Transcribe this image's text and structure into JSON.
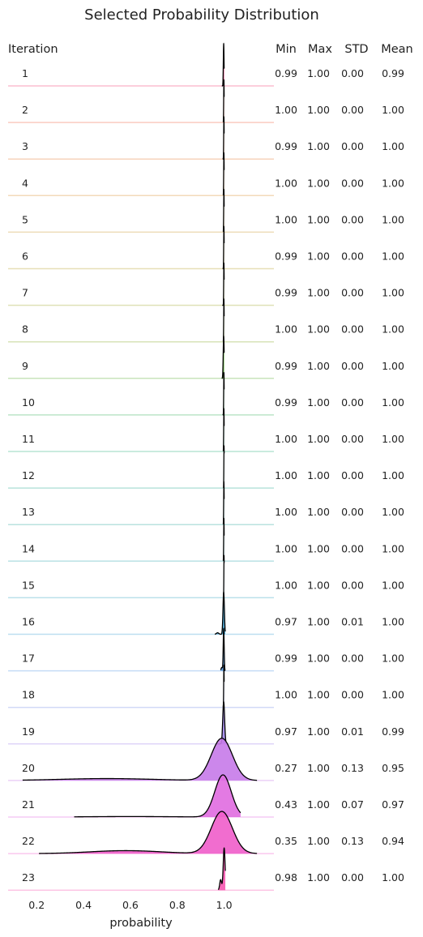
{
  "chart_data": {
    "type": "ridgeline",
    "title": "Selected Probability Distribution",
    "xlabel": "probability",
    "xlim": [
      0.13,
      1.15
    ],
    "x_ticks": [
      "0.2",
      "0.4",
      "0.6",
      "0.8",
      "1.0"
    ],
    "x_tick_values": [
      0.2,
      0.4,
      0.6,
      0.8,
      1.0
    ],
    "row_header": "Iteration",
    "stat_headers": [
      "Min",
      "Max",
      "STD",
      "Mean"
    ],
    "colors": [
      "#f0457c",
      "#f06a4a",
      "#e9813e",
      "#dc9438",
      "#cc9a34",
      "#b8a232",
      "#a3a932",
      "#8bae33",
      "#62b23b",
      "#3fb162",
      "#33b180",
      "#35af95",
      "#37aca4",
      "#39aab3",
      "#3ca8c2",
      "#43a3d3",
      "#5a9ce1",
      "#7e93e9",
      "#a288ec",
      "#c77ae9",
      "#e06be0",
      "#f05dca",
      "#f756b1"
    ],
    "series": [
      {
        "name": "1",
        "min": "0.99",
        "max": "1.00",
        "std": "0.00",
        "mean": "0.99",
        "mu": 0.998,
        "sigma": 0.0015,
        "xmin": 0.99,
        "xmax": 1.0
      },
      {
        "name": "2",
        "min": "1.00",
        "max": "1.00",
        "std": "0.00",
        "mean": "1.00",
        "mu": 0.999,
        "sigma": 0.001,
        "xmin": 0.996,
        "xmax": 1.0
      },
      {
        "name": "3",
        "min": "0.99",
        "max": "1.00",
        "std": "0.00",
        "mean": "1.00",
        "mu": 0.999,
        "sigma": 0.001,
        "xmin": 0.994,
        "xmax": 1.0
      },
      {
        "name": "4",
        "min": "1.00",
        "max": "1.00",
        "std": "0.00",
        "mean": "1.00",
        "mu": 0.999,
        "sigma": 0.001,
        "xmin": 0.996,
        "xmax": 1.0
      },
      {
        "name": "5",
        "min": "1.00",
        "max": "1.00",
        "std": "0.00",
        "mean": "1.00",
        "mu": 0.999,
        "sigma": 0.001,
        "xmin": 0.996,
        "xmax": 1.0
      },
      {
        "name": "6",
        "min": "0.99",
        "max": "1.00",
        "std": "0.00",
        "mean": "1.00",
        "mu": 0.999,
        "sigma": 0.001,
        "xmin": 0.994,
        "xmax": 1.0
      },
      {
        "name": "7",
        "min": "0.99",
        "max": "1.00",
        "std": "0.00",
        "mean": "1.00",
        "mu": 0.999,
        "sigma": 0.001,
        "xmin": 0.992,
        "xmax": 1.0
      },
      {
        "name": "8",
        "min": "1.00",
        "max": "1.00",
        "std": "0.00",
        "mean": "1.00",
        "mu": 0.999,
        "sigma": 0.001,
        "xmin": 0.996,
        "xmax": 1.0
      },
      {
        "name": "9",
        "min": "0.99",
        "max": "1.00",
        "std": "0.00",
        "mean": "1.00",
        "mu": 0.998,
        "sigma": 0.002,
        "xmin": 0.99,
        "xmax": 1.0
      },
      {
        "name": "10",
        "min": "0.99",
        "max": "1.00",
        "std": "0.00",
        "mean": "1.00",
        "mu": 0.999,
        "sigma": 0.001,
        "xmin": 0.994,
        "xmax": 1.0
      },
      {
        "name": "11",
        "min": "1.00",
        "max": "1.00",
        "std": "0.00",
        "mean": "1.00",
        "mu": 0.999,
        "sigma": 0.001,
        "xmin": 0.996,
        "xmax": 1.0
      },
      {
        "name": "12",
        "min": "1.00",
        "max": "1.00",
        "std": "0.00",
        "mean": "1.00",
        "mu": 0.9995,
        "sigma": 0.0008,
        "xmin": 0.997,
        "xmax": 1.0
      },
      {
        "name": "13",
        "min": "1.00",
        "max": "1.00",
        "std": "0.00",
        "mean": "1.00",
        "mu": 0.999,
        "sigma": 0.001,
        "xmin": 0.996,
        "xmax": 1.0
      },
      {
        "name": "14",
        "min": "1.00",
        "max": "1.00",
        "std": "0.00",
        "mean": "1.00",
        "mu": 0.999,
        "sigma": 0.001,
        "xmin": 0.996,
        "xmax": 1.0
      },
      {
        "name": "15",
        "min": "1.00",
        "max": "1.00",
        "std": "0.00",
        "mean": "1.00",
        "mu": 0.9995,
        "sigma": 0.0008,
        "xmin": 0.997,
        "xmax": 1.0
      },
      {
        "name": "16",
        "min": "0.97",
        "max": "1.00",
        "std": "0.01",
        "mean": "1.00",
        "mu": 0.998,
        "sigma": 0.003,
        "xmin": 0.96,
        "xmax": 1.005,
        "bump_mu": 0.972,
        "bump_sigma": 0.005,
        "bump_w": 0.035
      },
      {
        "name": "17",
        "min": "0.99",
        "max": "1.00",
        "std": "0.00",
        "mean": "1.00",
        "mu": 0.998,
        "sigma": 0.002,
        "xmin": 0.985,
        "xmax": 1.005,
        "bump_mu": 0.99,
        "bump_sigma": 0.003,
        "bump_w": 0.08
      },
      {
        "name": "18",
        "min": "1.00",
        "max": "1.00",
        "std": "0.00",
        "mean": "1.00",
        "mu": 0.999,
        "sigma": 0.001,
        "xmin": 0.996,
        "xmax": 1.0
      },
      {
        "name": "19",
        "min": "0.97",
        "max": "1.00",
        "std": "0.01",
        "mean": "0.99",
        "mu": 0.998,
        "sigma": 0.004,
        "xmin": 0.97,
        "xmax": 1.01
      },
      {
        "name": "20",
        "min": "0.27",
        "max": "1.00",
        "std": "0.13",
        "mean": "0.95",
        "mu": 0.99,
        "sigma": 0.045,
        "xmin": 0.14,
        "xmax": 1.14,
        "tail": 0.045,
        "tail_mu": 0.5,
        "tail_sigma": 0.2
      },
      {
        "name": "21",
        "min": "0.43",
        "max": "1.00",
        "std": "0.07",
        "mean": "0.97",
        "mu": 0.995,
        "sigma": 0.035,
        "xmin": 0.36,
        "xmax": 1.07,
        "tail": 0.012,
        "tail_mu": 0.6,
        "tail_sigma": 0.18
      },
      {
        "name": "22",
        "min": "0.35",
        "max": "1.00",
        "std": "0.13",
        "mean": "0.94",
        "mu": 0.99,
        "sigma": 0.045,
        "xmin": 0.21,
        "xmax": 1.14,
        "tail": 0.07,
        "tail_mu": 0.58,
        "tail_sigma": 0.15
      },
      {
        "name": "23",
        "min": "0.98",
        "max": "1.00",
        "std": "0.00",
        "mean": "1.00",
        "mu": 1.0,
        "sigma": 0.004,
        "xmin": 0.975,
        "xmax": 1.005,
        "bump_mu": 0.985,
        "bump_sigma": 0.004,
        "bump_w": 0.25
      }
    ]
  }
}
